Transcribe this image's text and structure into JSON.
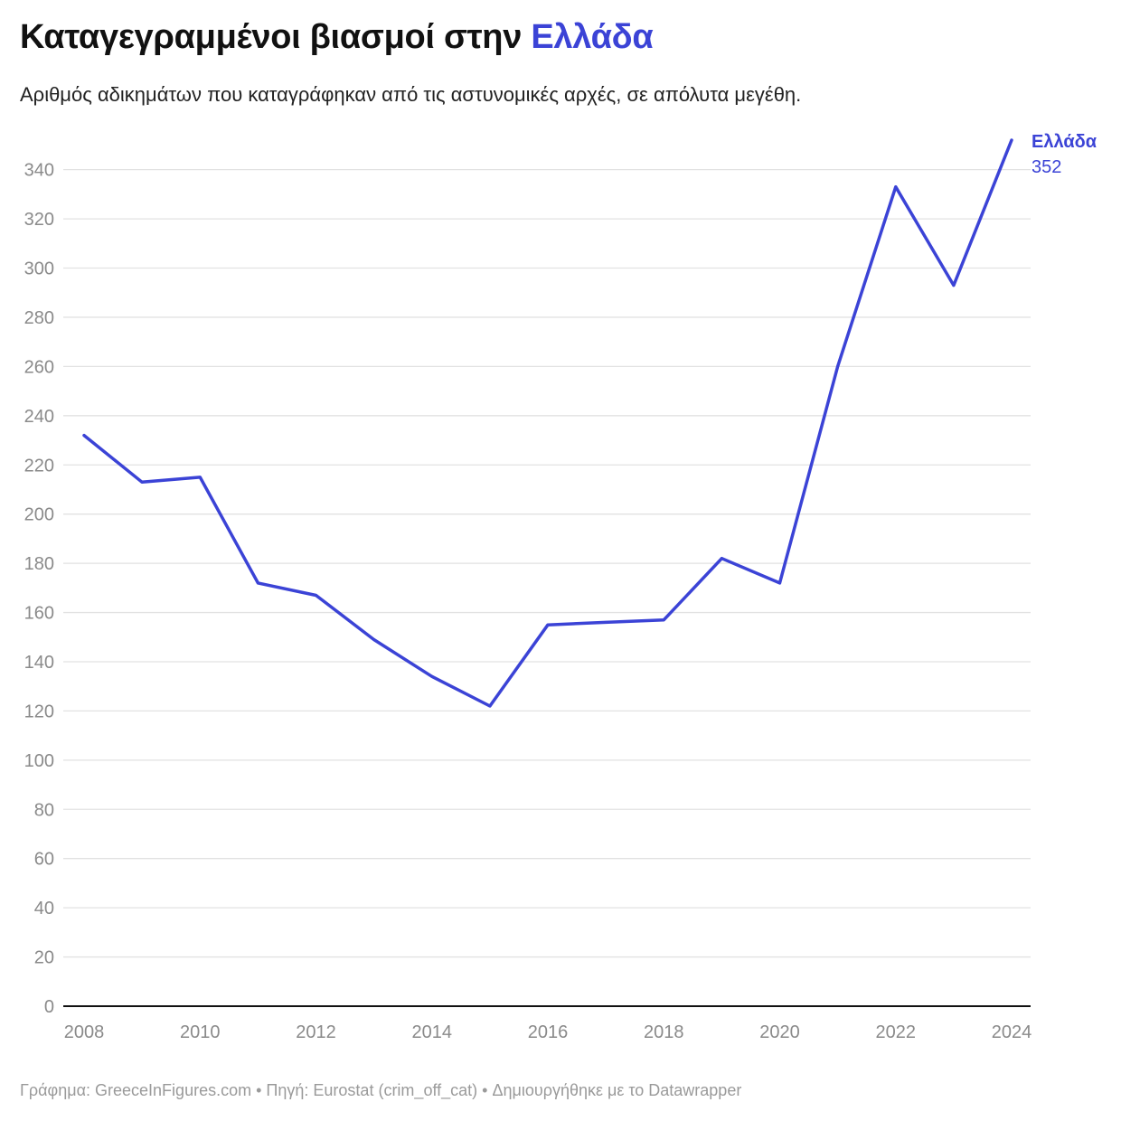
{
  "header": {
    "title": "Καταγεγραμμένοι βιασμοί στην",
    "title_highlight": "Ελλάδα",
    "subtitle": "Αριθμός αδικημάτων που καταγράφηκαν από τις αστυνομικές αρχές, σε απόλυτα μεγέθη."
  },
  "colors": {
    "series": "#3b43d6",
    "grid": "#e2e2e2",
    "axis": "#111111",
    "tick_text": "#8a8a8a"
  },
  "chart_data": {
    "type": "line",
    "x": [
      2008,
      2009,
      2010,
      2011,
      2012,
      2013,
      2014,
      2015,
      2016,
      2017,
      2018,
      2019,
      2020,
      2021,
      2022,
      2023,
      2024
    ],
    "series": [
      {
        "name": "Ελλάδα",
        "values": [
          232,
          213,
          215,
          172,
          167,
          149,
          134,
          122,
          155,
          156,
          157,
          182,
          172,
          260,
          333,
          293,
          352
        ]
      }
    ],
    "xticks": [
      2008,
      2010,
      2012,
      2014,
      2016,
      2018,
      2020,
      2022,
      2024
    ],
    "yticks": [
      0,
      20,
      40,
      60,
      80,
      100,
      120,
      140,
      160,
      180,
      200,
      220,
      240,
      260,
      280,
      300,
      320,
      340
    ],
    "xlim": [
      2008,
      2024
    ],
    "ylim": [
      0,
      352
    ],
    "grid": true,
    "end_label": {
      "name": "Ελλάδα",
      "value": "352"
    }
  },
  "footer": {
    "text": "Γράφημα: GreeceInFigures.com • Πηγή: Eurostat (crim_off_cat) • Δημιουργήθηκε με το Datawrapper"
  }
}
